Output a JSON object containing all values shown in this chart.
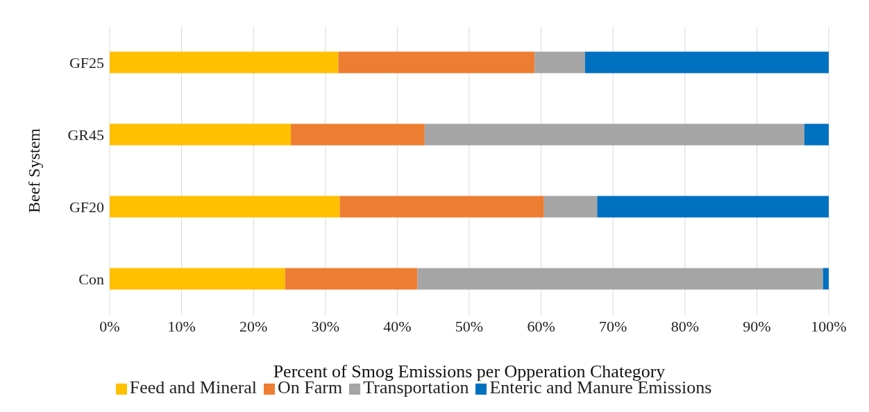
{
  "chart_data": {
    "type": "bar",
    "orientation": "horizontal",
    "stacked": true,
    "xlabel": "Percent of Smog Emissions per Opperation Chategory",
    "ylabel": "Beef System",
    "categories": [
      "GF25",
      "GR45",
      "GF20",
      "Con"
    ],
    "series": [
      {
        "name": "Feed and Mineral",
        "color": "#ffc000",
        "values": [
          31.8,
          25.2,
          32.0,
          24.4
        ]
      },
      {
        "name": "On Farm",
        "color": "#ed7d31",
        "values": [
          27.3,
          18.6,
          28.4,
          18.4
        ]
      },
      {
        "name": "Transportation",
        "color": "#a5a5a5",
        "values": [
          7.0,
          52.8,
          7.4,
          56.4
        ]
      },
      {
        "name": "Enteric and Manure Emissions",
        "color": "#0070c0",
        "values": [
          33.9,
          3.4,
          32.2,
          0.8
        ]
      }
    ],
    "xlim": [
      0,
      100
    ],
    "xticks": [
      {
        "value": 0,
        "label": "0%"
      },
      {
        "value": 10,
        "label": "10%"
      },
      {
        "value": 20,
        "label": "20%"
      },
      {
        "value": 30,
        "label": "30%"
      },
      {
        "value": 40,
        "label": "40%"
      },
      {
        "value": 50,
        "label": "50%"
      },
      {
        "value": 60,
        "label": "60%"
      },
      {
        "value": 70,
        "label": "70%"
      },
      {
        "value": 80,
        "label": "80%"
      },
      {
        "value": 90,
        "label": "90%"
      },
      {
        "value": 100,
        "label": "100%"
      }
    ],
    "grid": "x",
    "legend": "bottom"
  }
}
